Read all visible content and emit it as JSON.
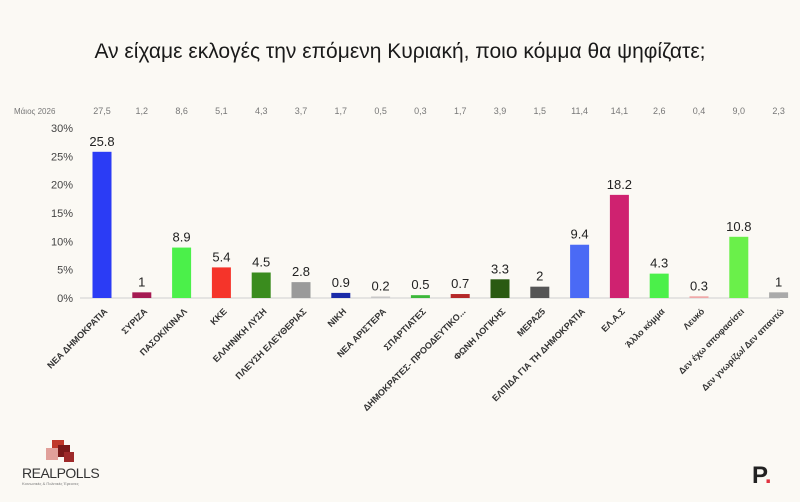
{
  "page": {
    "title": "Αν είχαμε εκλογές την επόμενη Κυριακή, ποιο κόμμα θα ψηφίζατε;"
  },
  "chart_data": {
    "type": "bar",
    "categories": [
      "ΝΕΑ ΔΗΜΟΚΡΑΤΙΑ",
      "ΣΥΡΙΖΑ",
      "ΠΑΣΟΚ/ΚΙΝΑΛ",
      "ΚΚΕ",
      "ΕΛΛΗΝΙΚΗ ΛΥΣΗ",
      "ΠΛΕΥΣΗ ΕΛΕΥΘΕΡΙΑΣ",
      "ΝΙΚΗ",
      "ΝΕΑ ΑΡΙΣΤΕΡΑ",
      "ΣΠΑΡΤΙΑΤΕΣ",
      "ΔΗΜΟΚΡΑΤΕΣ- ΠΡΟΟΔΕΥΤΙΚΟ...",
      "ΦΩΝΗ ΛΟΓΙΚΗΣ",
      "ΜΕΡΑ25",
      "ΕΛΠΙΔΑ ΓΙΑ ΤΗ ΔΗΜΟΚΡΑΤΙΑ",
      "ΕΛ.Α.Σ",
      "Άλλο κόμμα",
      "Λευκό",
      "Δεν έχω αποφασίσει",
      "Δεν γνωρίζω/ Δεν απαντώ"
    ],
    "values": [
      25.8,
      1,
      8.9,
      5.4,
      4.5,
      2.8,
      0.9,
      0.2,
      0.5,
      0.7,
      3.3,
      2,
      9.4,
      18.2,
      4.3,
      0.3,
      10.8,
      1
    ],
    "value_labels": [
      "25.8",
      "1",
      "8.9",
      "5.4",
      "4.5",
      "2.8",
      "0.9",
      "0.2",
      "0.5",
      "0.7",
      "3.3",
      "2",
      "9.4",
      "18.2",
      "4.3",
      "0.3",
      "10.8",
      "1"
    ],
    "colors": [
      "#2b3cf5",
      "#a51a52",
      "#4bf04a",
      "#f5342a",
      "#3a8c1e",
      "#9a9a9a",
      "#1a2aa8",
      "#c8c8c8",
      "#3cb83a",
      "#b52828",
      "#2a5a12",
      "#555555",
      "#4a6af5",
      "#cf2270",
      "#4bf04a",
      "#f0a8a8",
      "#6af04a",
      "#aaaaaa"
    ],
    "comparison": {
      "label": "Μάιος 2026",
      "values": [
        "27,5",
        "1,2",
        "8,6",
        "5,1",
        "4,3",
        "3,7",
        "1,7",
        "0,5",
        "0,3",
        "1,7",
        "3,9",
        "1,5",
        "11,4",
        "14,1",
        "2,6",
        "0,4",
        "9,0",
        "2,3"
      ]
    },
    "y_ticks": [
      "30%",
      "25%",
      "20%",
      "15%",
      "10%",
      "5%",
      "0%"
    ],
    "ylim": [
      0,
      30
    ],
    "grid": false
  },
  "branding": {
    "left_logo_text": "REALPOLLS",
    "left_logo_tagline": "Κοινωνικές & Πολιτικές Έρευνες",
    "right_logo_text": "P",
    "right_logo_dot": "."
  }
}
